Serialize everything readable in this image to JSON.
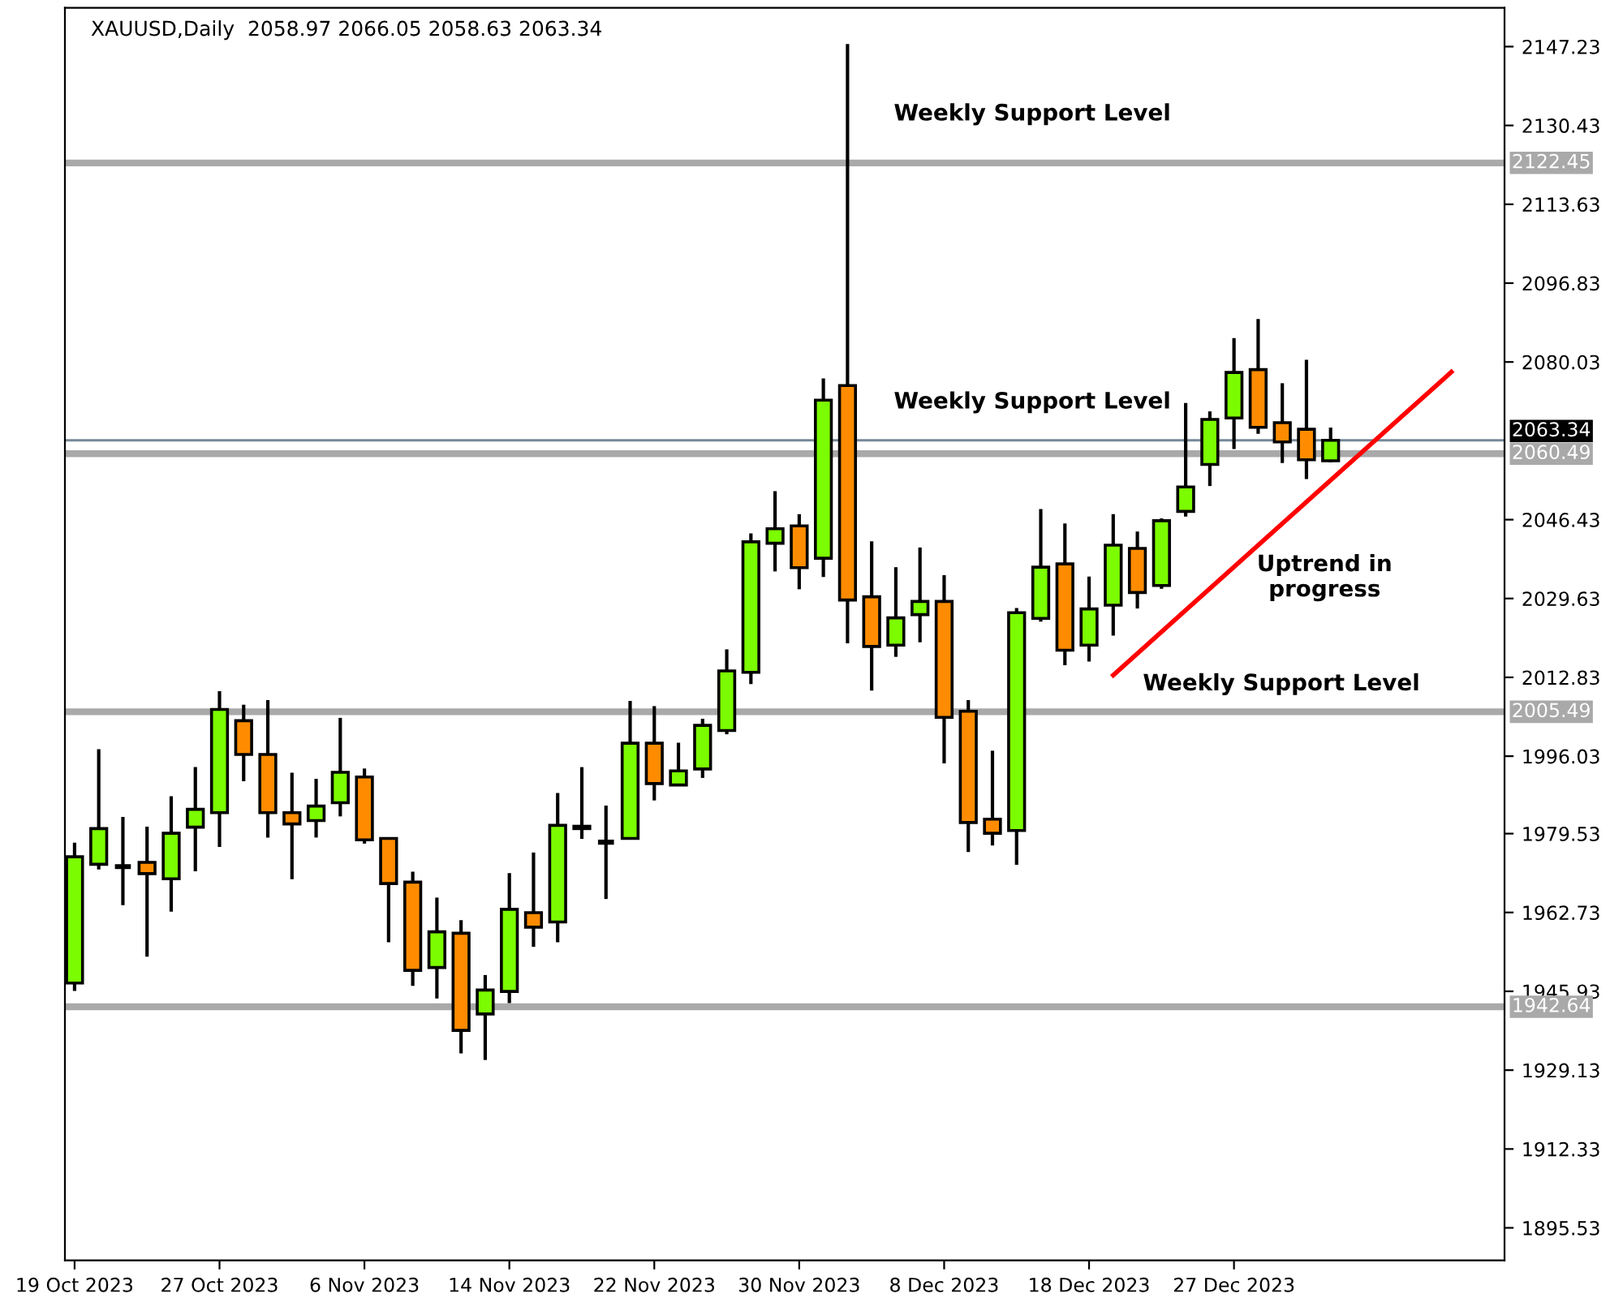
{
  "chart_data": {
    "type": "candlestick",
    "title": "XAUUSD,Daily  2058.97 2066.05 2058.63 2063.34",
    "categories": [
      "19 Oct 2023",
      null,
      null,
      null,
      null,
      null,
      "27 Oct 2023",
      null,
      null,
      null,
      null,
      null,
      "6 Nov 2023",
      null,
      null,
      null,
      null,
      null,
      "14 Nov 2023",
      null,
      null,
      null,
      null,
      null,
      "22 Nov 2023",
      null,
      null,
      null,
      null,
      null,
      "30 Nov 2023",
      null,
      null,
      null,
      null,
      null,
      "8 Dec 2023",
      null,
      null,
      null,
      null,
      null,
      "18 Dec 2023",
      null,
      null,
      null,
      null,
      null,
      "27 Dec 2023",
      null,
      null,
      null,
      null,
      null,
      null,
      null,
      null,
      null,
      null,
      null
    ],
    "ohlc": [
      [
        1947.7,
        1977.6,
        1946.0,
        1974.6
      ],
      [
        1973.0,
        1997.5,
        1971.9,
        1980.6
      ],
      [
        1972.5,
        1983.1,
        1964.3,
        1972.5
      ],
      [
        1973.4,
        1981.0,
        1953.3,
        1971.0
      ],
      [
        1969.9,
        1987.5,
        1962.9,
        1979.6
      ],
      [
        1980.9,
        1993.7,
        1971.5,
        1984.7
      ],
      [
        1984.0,
        2009.9,
        1976.7,
        2006.0
      ],
      [
        2003.6,
        2007.0,
        1990.7,
        1996.4
      ],
      [
        1996.4,
        2008.0,
        1978.7,
        1984.0
      ],
      [
        1984.0,
        1992.5,
        1969.8,
        1981.6
      ],
      [
        1982.3,
        1991.2,
        1978.7,
        1985.4
      ],
      [
        1986.1,
        2004.2,
        1983.2,
        1992.6
      ],
      [
        1991.6,
        1993.4,
        1977.4,
        1978.2
      ],
      [
        1978.5,
        1978.5,
        1956.4,
        1968.9
      ],
      [
        1969.2,
        1971.4,
        1947.1,
        1950.4
      ],
      [
        1951.0,
        1965.9,
        1944.4,
        1958.6
      ],
      [
        1958.3,
        1961.1,
        1932.7,
        1937.6
      ],
      [
        1941.1,
        1949.4,
        1931.3,
        1946.2
      ],
      [
        1945.9,
        1971.1,
        1943.4,
        1963.4
      ],
      [
        1962.7,
        1975.5,
        1955.4,
        1959.6
      ],
      [
        1960.7,
        1988.2,
        1956.4,
        1981.3
      ],
      [
        1981.1,
        1993.7,
        1978.4,
        1980.6
      ],
      [
        1977.7,
        1985.5,
        1965.6,
        1977.7
      ],
      [
        1978.5,
        2007.8,
        1978.5,
        1998.8
      ],
      [
        1998.8,
        2006.7,
        1986.6,
        1990.2
      ],
      [
        1989.9,
        1998.9,
        1989.9,
        1992.9
      ],
      [
        1993.3,
        2004.0,
        1991.4,
        2002.6
      ],
      [
        2001.5,
        2018.8,
        2000.7,
        2014.2
      ],
      [
        2013.9,
        2043.5,
        2011.4,
        2041.7
      ],
      [
        2041.4,
        2052.5,
        2035.4,
        2044.5
      ],
      [
        2045.1,
        2047.6,
        2031.6,
        2036.2
      ],
      [
        2038.2,
        2076.5,
        2034.2,
        2071.9
      ],
      [
        2075.0,
        2147.8,
        2020.1,
        2029.3
      ],
      [
        2030.0,
        2041.8,
        2010.0,
        2019.4
      ],
      [
        2019.7,
        2036.3,
        2017.2,
        2025.5
      ],
      [
        2026.2,
        2040.5,
        2020.3,
        2029.0
      ],
      [
        2029.0,
        2034.6,
        1994.5,
        2004.3
      ],
      [
        2005.6,
        2008.0,
        1975.6,
        1981.9
      ],
      [
        1982.6,
        1997.2,
        1977.0,
        1979.6
      ],
      [
        1980.2,
        2027.6,
        1972.9,
        2026.6
      ],
      [
        2025.4,
        2048.7,
        2024.7,
        2036.3
      ],
      [
        2037.0,
        2045.6,
        2015.4,
        2018.6
      ],
      [
        2019.7,
        2034.3,
        2016.2,
        2027.4
      ],
      [
        2028.2,
        2047.6,
        2021.7,
        2041.0
      ],
      [
        2040.3,
        2043.9,
        2027.5,
        2030.9
      ],
      [
        2032.4,
        2046.7,
        2031.7,
        2046.2
      ],
      [
        2048.2,
        2071.3,
        2047.1,
        2053.4
      ],
      [
        2058.2,
        2069.5,
        2053.6,
        2067.8
      ],
      [
        2068.1,
        2085.1,
        2061.5,
        2077.8
      ],
      [
        2078.4,
        2089.2,
        2064.7,
        2066.1
      ],
      [
        2067.1,
        2075.5,
        2058.5,
        2063.0
      ],
      [
        2065.7,
        2080.5,
        2055.1,
        2059.2
      ],
      [
        2058.97,
        2066.05,
        2058.63,
        2063.34
      ],
      null,
      null,
      null,
      null,
      null,
      null,
      null
    ],
    "colors": [
      "#7cfc00",
      "#7cfc00",
      "#000000",
      "#ff8c00",
      "#7cfc00",
      "#7cfc00",
      "#7cfc00",
      "#ff8c00",
      "#ff8c00",
      "#ff8c00",
      "#7cfc00",
      "#7cfc00",
      "#ff8c00",
      "#ff8c00",
      "#ff8c00",
      "#7cfc00",
      "#ff8c00",
      "#7cfc00",
      "#7cfc00",
      "#ff8c00",
      "#7cfc00",
      "#ff8c00",
      "#000000",
      "#7cfc00",
      "#ff8c00",
      "#7cfc00",
      "#7cfc00",
      "#7cfc00",
      "#7cfc00",
      "#7cfc00",
      "#ff8c00",
      "#7cfc00",
      "#ff8c00",
      "#ff8c00",
      "#7cfc00",
      "#7cfc00",
      "#ff8c00",
      "#ff8c00",
      "#ff8c00",
      "#7cfc00",
      "#7cfc00",
      "#ff8c00",
      "#7cfc00",
      "#7cfc00",
      "#ff8c00",
      "#7cfc00",
      "#7cfc00",
      "#7cfc00",
      "#7cfc00",
      "#ff8c00",
      "#ff8c00",
      "#ff8c00",
      "#7cfc00",
      null,
      null,
      null,
      null,
      null,
      null,
      null
    ],
    "series": [
      {
        "type": "line",
        "color": "#ff0000",
        "values": [
          null,
          null,
          null,
          null,
          null,
          null,
          null,
          null,
          null,
          null,
          null,
          null,
          null,
          null,
          null,
          null,
          null,
          null,
          null,
          null,
          null,
          null,
          null,
          null,
          null,
          null,
          null,
          null,
          null,
          null,
          null,
          null,
          null,
          null,
          null,
          null,
          null,
          null,
          null,
          null,
          null,
          null,
          null,
          2013.3,
          null,
          null,
          null,
          null,
          null,
          null,
          null,
          null,
          null,
          null,
          null,
          null,
          null,
          2077.9,
          null,
          null
        ]
      }
    ],
    "ylim": [
      1888.6,
      2155.5
    ],
    "yticks": [
      1895.53,
      1912.33,
      1929.13,
      1945.93,
      1962.73,
      1979.53,
      1996.03,
      2012.83,
      2029.63,
      2046.43,
      2080.03,
      2096.83,
      2113.63,
      2130.43,
      2147.23
    ],
    "ref_lines": [
      {
        "axis": "y",
        "value": 2122.45,
        "label": "2122.45",
        "color": "#a9a9a9"
      },
      {
        "axis": "y",
        "value": 2063.34,
        "label": "2063.34",
        "color": "#778899"
      },
      {
        "axis": "y",
        "value": 2060.49,
        "label": "2060.49",
        "color": "#a9a9a9"
      },
      {
        "axis": "y",
        "value": 2005.49,
        "label": "2005.49",
        "color": "#a9a9a9"
      },
      {
        "axis": "y",
        "value": 1942.64,
        "label": "1942.64",
        "color": "#a9a9a9"
      }
    ],
    "annotations": [
      "Weekly Support Level",
      "Weekly Support Level",
      "Uptrend in\nprogress",
      "Weekly Support Level"
    ]
  }
}
